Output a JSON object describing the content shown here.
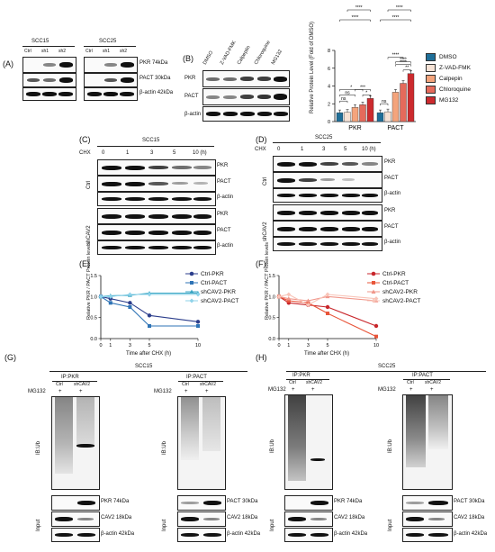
{
  "panel_labels": {
    "A": "(A)",
    "B": "(B)",
    "C": "(C)",
    "D": "(D)",
    "E": "(E)",
    "F": "(F)",
    "G": "(G)",
    "H": "(H)"
  },
  "panel_A": {
    "group1": "SCC15",
    "group2": "SCC25",
    "lanes": [
      "Ctrl",
      "sh1",
      "sh2"
    ],
    "rows": [
      "PKR 74kDa",
      "PACT 30kDa",
      "β-actin 42kDa"
    ]
  },
  "panel_B": {
    "lanes": [
      "DMSO",
      "Z-VAD-FMK",
      "Calpeptin",
      "Chloroquine",
      "MG132"
    ],
    "rows": [
      "PKR",
      "PACT",
      "β-actin"
    ]
  },
  "chart_data": [
    {
      "type": "bar",
      "ylabel": "Relative Protein Level (Fold of DMSO)",
      "categories": [
        "PKR",
        "PACT"
      ],
      "ylim": [
        0,
        8
      ],
      "yticks": [
        0,
        2,
        4,
        6,
        8
      ],
      "series": [
        {
          "name": "DMSO",
          "color": "#1f6f99",
          "values": [
            1.0,
            1.0
          ]
        },
        {
          "name": "Z-VAD-FMK",
          "color": "#f6e2d5",
          "values": [
            1.05,
            1.1
          ]
        },
        {
          "name": "Calpepin",
          "color": "#f4a47c",
          "values": [
            1.6,
            3.3
          ]
        },
        {
          "name": "Chloroquine",
          "color": "#e56a5b",
          "values": [
            1.9,
            4.3
          ]
        },
        {
          "name": "MG132",
          "color": "#cc2a2e",
          "values": [
            2.6,
            5.4
          ]
        }
      ],
      "significance": {
        "PKR": [
          "ns",
          "ns",
          "*",
          "***",
          "*",
          "****",
          "****"
        ],
        "PACT": [
          "ns",
          "****",
          "****",
          "**",
          "****",
          "****",
          "****"
        ]
      }
    },
    {
      "type": "line",
      "ylabel": "Relative PKR / PACT Protein levels",
      "xlabel": "Time after CHX (h)",
      "x": [
        0,
        1,
        3,
        5,
        10
      ],
      "xlim": [
        0,
        10
      ],
      "ylim": [
        0,
        1.5
      ],
      "yticks": [
        "0.0",
        "0.5",
        "1.0",
        "1.5"
      ],
      "xticks": [
        "0",
        "1",
        "3",
        "5",
        "10"
      ],
      "series": [
        {
          "name": "Ctrl-PKR",
          "color": "#2c3e8c",
          "marker": "circle",
          "values": [
            1.0,
            0.95,
            0.85,
            0.55,
            0.4
          ]
        },
        {
          "name": "Ctrl-PACT",
          "color": "#2e73b5",
          "marker": "square",
          "values": [
            1.0,
            0.85,
            0.75,
            0.3,
            0.3
          ]
        },
        {
          "name": "shCAV2-PKR",
          "color": "#3aa6c4",
          "marker": "triangle",
          "values": [
            1.0,
            1.02,
            1.03,
            1.08,
            1.08
          ]
        },
        {
          "name": "shCAV2-PACT",
          "color": "#8fd3ea",
          "marker": "diamond",
          "values": [
            1.0,
            1.0,
            1.05,
            1.05,
            1.05
          ]
        }
      ]
    },
    {
      "type": "line",
      "ylabel": "Relative PKR / PACT Protein levels",
      "xlabel": "Time after CHX (h)",
      "x": [
        0,
        1,
        3,
        5,
        10
      ],
      "xlim": [
        0,
        10
      ],
      "ylim": [
        0,
        1.5
      ],
      "yticks": [
        "0.0",
        "0.5",
        "1.0",
        "1.5"
      ],
      "xticks": [
        "0",
        "1",
        "3",
        "5",
        "10"
      ],
      "series": [
        {
          "name": "Ctrl-PKR",
          "color": "#c8262b",
          "marker": "circle",
          "values": [
            1.0,
            0.85,
            0.8,
            0.75,
            0.3
          ]
        },
        {
          "name": "Ctrl-PACT",
          "color": "#e8553a",
          "marker": "square",
          "values": [
            1.0,
            0.9,
            0.85,
            0.6,
            0.05
          ]
        },
        {
          "name": "shCAV2-PKR",
          "color": "#f0968a",
          "marker": "triangle",
          "values": [
            1.0,
            0.95,
            0.9,
            1.0,
            0.9
          ]
        },
        {
          "name": "shCAV2-PACT",
          "color": "#f8c4b8",
          "marker": "diamond",
          "values": [
            1.0,
            1.05,
            0.8,
            1.05,
            0.95
          ]
        }
      ]
    }
  ],
  "panel_C": {
    "title": "SCC15",
    "chx": "CHX",
    "times": [
      "0",
      "1",
      "3",
      "5",
      "10 (h)"
    ],
    "groups": [
      "Ctrl",
      "shCAV2"
    ],
    "rows": [
      "PKR",
      "PACT",
      "β-actin"
    ]
  },
  "panel_D": {
    "title": "SCC25",
    "chx": "CHX",
    "times": [
      "0",
      "1",
      "3",
      "5",
      "10 (h)"
    ],
    "groups": [
      "Ctrl",
      "shCAV2"
    ],
    "rows": [
      "PKR",
      "PACT",
      "β-actin"
    ]
  },
  "panel_G": {
    "title": "SCC15",
    "ip1": "IP:PKR",
    "ip2": "IP:PACT",
    "mg132": "MG132",
    "lanes": [
      "Ctrl",
      "shCAV2"
    ],
    "plus": "+",
    "ib": "IB:Ub",
    "input": "Input",
    "rows1": [
      "PKR 74kDa",
      "CAV2 18kDa",
      "β-actin 42kDa"
    ],
    "rows2": [
      "PACT 30kDa",
      "CAV2 18kDa",
      "β-actin 42kDa"
    ]
  },
  "panel_H": {
    "title": "SCC25",
    "ip1": "IP:PKR",
    "ip2": "IP:PACT",
    "mg132": "MG132",
    "lanes": [
      "Ctrl",
      "shCAV2"
    ],
    "plus": "+",
    "ib": "IB:Ub",
    "input": "Input",
    "rows1": [
      "PKR 74kDa",
      "CAV2 18kDa",
      "β-actin 42kDa"
    ],
    "rows2": [
      "PACT 30kDa",
      "CAV2 18kDa",
      "β-actin 42kDa"
    ]
  }
}
